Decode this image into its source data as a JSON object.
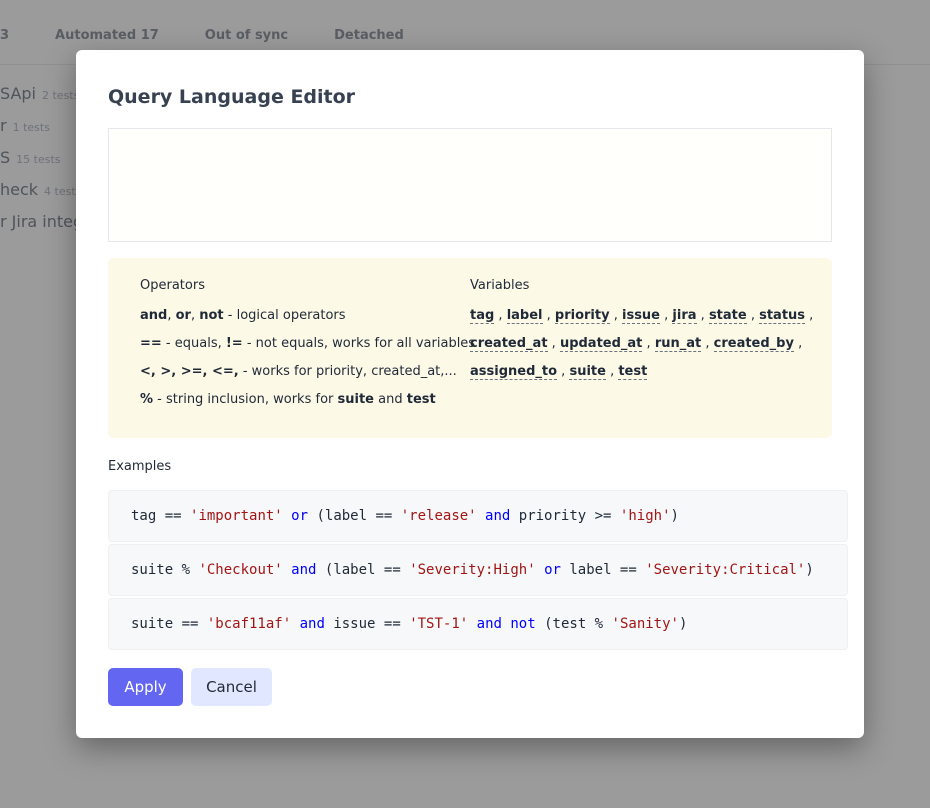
{
  "background": {
    "tabs": [
      "3",
      "Automated 17",
      "Out of sync",
      "Detached"
    ],
    "rows": [
      {
        "name": "SApi",
        "count": "2 tests"
      },
      {
        "name": "r",
        "count": "1 tests"
      },
      {
        "name": "S",
        "count": "15 tests"
      },
      {
        "name": "heck",
        "count": "4 tests"
      },
      {
        "name": "r Jira integ",
        "count": ""
      }
    ]
  },
  "modal": {
    "title": "Query Language Editor",
    "editor_value": "",
    "operators_heading": "Operators",
    "operators": [
      [
        {
          "t": "and",
          "s": "b"
        },
        {
          "t": ", ",
          "s": ""
        },
        {
          "t": "or",
          "s": "b"
        },
        {
          "t": ", ",
          "s": ""
        },
        {
          "t": "not",
          "s": "b"
        },
        {
          "t": " - logical operators",
          "s": ""
        }
      ],
      [
        {
          "t": "==",
          "s": "b"
        },
        {
          "t": " - equals, ",
          "s": ""
        },
        {
          "t": "!=",
          "s": "b"
        },
        {
          "t": " - not equals, works for all variables",
          "s": ""
        }
      ],
      [
        {
          "t": "<, >, >=, <=,",
          "s": "b"
        },
        {
          "t": " - works for priority, created_at,...",
          "s": ""
        }
      ],
      [
        {
          "t": "%",
          "s": "b"
        },
        {
          "t": " - string inclusion, works for ",
          "s": ""
        },
        {
          "t": "suite",
          "s": "b"
        },
        {
          "t": " and ",
          "s": ""
        },
        {
          "t": "test",
          "s": "b"
        }
      ]
    ],
    "variables_heading": "Variables",
    "variables": [
      [
        "tag",
        "label",
        "priority",
        "issue",
        "jira",
        "state",
        "status"
      ],
      [
        "created_at",
        "updated_at",
        "run_at",
        "created_by"
      ],
      [
        "assigned_to",
        "suite",
        "test"
      ]
    ],
    "examples_label": "Examples",
    "examples": [
      [
        {
          "t": "tag == ",
          "s": "plain"
        },
        {
          "t": "'important'",
          "s": "str"
        },
        {
          "t": " ",
          "s": "plain"
        },
        {
          "t": "or",
          "s": "kw"
        },
        {
          "t": " (label == ",
          "s": "plain"
        },
        {
          "t": "'release'",
          "s": "str"
        },
        {
          "t": " ",
          "s": "plain"
        },
        {
          "t": "and",
          "s": "kw"
        },
        {
          "t": " priority >= ",
          "s": "plain"
        },
        {
          "t": "'high'",
          "s": "str"
        },
        {
          "t": ")",
          "s": "plain"
        }
      ],
      [
        {
          "t": "suite % ",
          "s": "plain"
        },
        {
          "t": "'Checkout'",
          "s": "str"
        },
        {
          "t": " ",
          "s": "plain"
        },
        {
          "t": "and",
          "s": "kw"
        },
        {
          "t": " (label == ",
          "s": "plain"
        },
        {
          "t": "'Severity:High'",
          "s": "str"
        },
        {
          "t": " ",
          "s": "plain"
        },
        {
          "t": "or",
          "s": "kw"
        },
        {
          "t": " label == ",
          "s": "plain"
        },
        {
          "t": "'Severity:Critical'",
          "s": "str"
        },
        {
          "t": ")",
          "s": "plain"
        }
      ],
      [
        {
          "t": "suite == ",
          "s": "plain"
        },
        {
          "t": "'bcaf11af'",
          "s": "str"
        },
        {
          "t": " ",
          "s": "plain"
        },
        {
          "t": "and",
          "s": "kw"
        },
        {
          "t": " issue == ",
          "s": "plain"
        },
        {
          "t": "'TST-1'",
          "s": "str"
        },
        {
          "t": " ",
          "s": "plain"
        },
        {
          "t": "and",
          "s": "kw"
        },
        {
          "t": " ",
          "s": "plain"
        },
        {
          "t": "not",
          "s": "kw"
        },
        {
          "t": " (test % ",
          "s": "plain"
        },
        {
          "t": "'Sanity'",
          "s": "str"
        },
        {
          "t": ")",
          "s": "plain"
        }
      ]
    ],
    "apply_label": "Apply",
    "cancel_label": "Cancel"
  },
  "colors": {
    "primary": "#6366f1",
    "keyword": "#0000ff",
    "string": "#a31515",
    "help_bg": "#fdf9e7"
  }
}
